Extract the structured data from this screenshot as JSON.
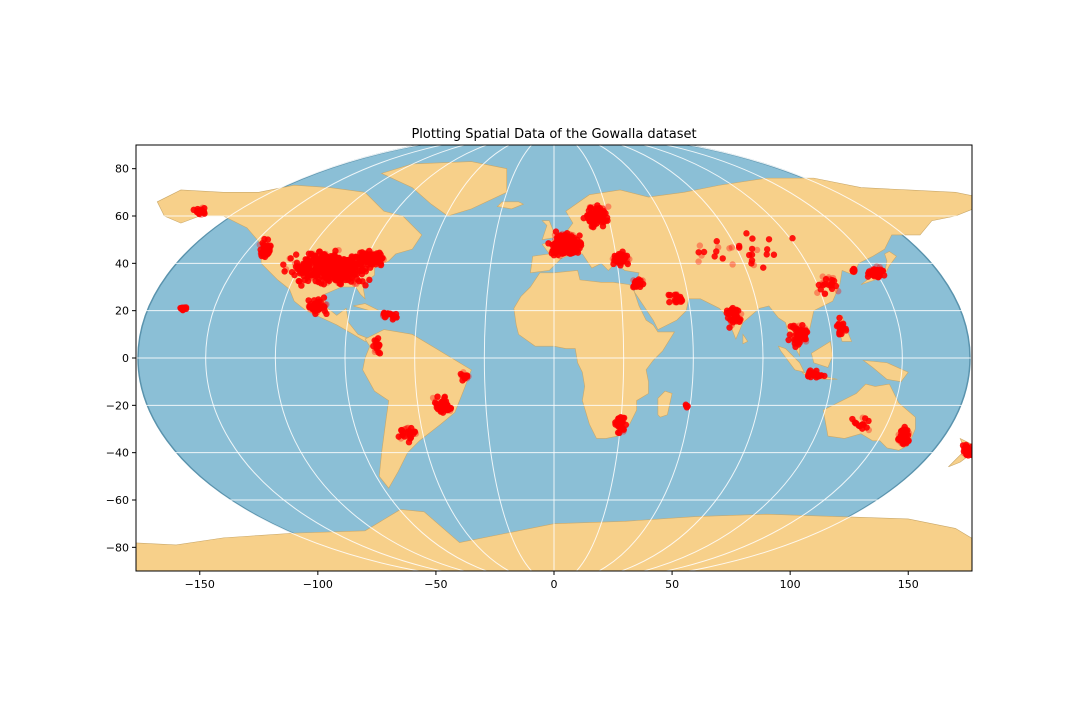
{
  "chart_data": {
    "type": "scatter",
    "title": "Plotting Spatial Data of the Gowalla dataset",
    "xlabel": "",
    "ylabel": "",
    "xlim": [
      -177,
      177
    ],
    "ylim": [
      -90,
      90
    ],
    "x_ticks": [
      -150,
      -100,
      -50,
      0,
      50,
      100,
      150
    ],
    "x_tick_labels": [
      "−150",
      "−100",
      "−50",
      "0",
      "50",
      "100",
      "150"
    ],
    "y_ticks": [
      80,
      60,
      40,
      20,
      0,
      -20,
      -40,
      -60,
      -80
    ],
    "y_tick_labels": [
      "80",
      "60",
      "40",
      "20",
      "0",
      "−20",
      "−40",
      "−60",
      "−80"
    ],
    "projection": "Robinson world map with graticule",
    "grid": true,
    "colors": {
      "ocean": "#8bbfd6",
      "land": "#f7d08a",
      "points": "#ff0000",
      "graticule": "#ffffff",
      "border": "#5a93ad"
    },
    "series": [
      {
        "marker": "circle",
        "clusters": [
          {
            "lon": -95,
            "lat": 38,
            "spread_lon": 22,
            "spread_lat": 9,
            "n": 420
          },
          {
            "lon": -78,
            "lat": 42,
            "spread_lon": 8,
            "spread_lat": 4,
            "n": 90
          },
          {
            "lon": -122,
            "lat": 46,
            "spread_lon": 4,
            "spread_lat": 5,
            "n": 50
          },
          {
            "lon": -150,
            "lat": 62,
            "spread_lon": 3,
            "spread_lat": 2,
            "n": 18
          },
          {
            "lon": -157,
            "lat": 21,
            "spread_lon": 2,
            "spread_lat": 1,
            "n": 10
          },
          {
            "lon": -100,
            "lat": 22,
            "spread_lon": 6,
            "spread_lat": 4,
            "n": 50
          },
          {
            "lon": -70,
            "lat": 18,
            "spread_lon": 6,
            "spread_lat": 2,
            "n": 25
          },
          {
            "lon": -75,
            "lat": 5,
            "spread_lon": 3,
            "spread_lat": 4,
            "n": 20
          },
          {
            "lon": -47,
            "lat": -20,
            "spread_lon": 5,
            "spread_lat": 5,
            "n": 50
          },
          {
            "lon": -62,
            "lat": -32,
            "spread_lon": 5,
            "spread_lat": 4,
            "n": 30
          },
          {
            "lon": -38,
            "lat": -8,
            "spread_lon": 3,
            "spread_lat": 3,
            "n": 15
          },
          {
            "lon": 5,
            "lat": 48,
            "spread_lon": 8,
            "spread_lat": 6,
            "n": 320
          },
          {
            "lon": 18,
            "lat": 60,
            "spread_lon": 6,
            "spread_lat": 6,
            "n": 120
          },
          {
            "lon": 28,
            "lat": 42,
            "spread_lon": 5,
            "spread_lat": 4,
            "n": 60
          },
          {
            "lon": 35,
            "lat": 32,
            "spread_lon": 4,
            "spread_lat": 3,
            "n": 25
          },
          {
            "lon": 52,
            "lat": 25,
            "spread_lon": 4,
            "spread_lat": 3,
            "n": 25
          },
          {
            "lon": 28,
            "lat": -28,
            "spread_lon": 3,
            "spread_lat": 5,
            "n": 40
          },
          {
            "lon": 76,
            "lat": 18,
            "spread_lon": 5,
            "spread_lat": 7,
            "n": 45
          },
          {
            "lon": 104,
            "lat": 10,
            "spread_lon": 5,
            "spread_lat": 7,
            "n": 65
          },
          {
            "lon": 110,
            "lat": -7,
            "spread_lon": 6,
            "spread_lat": 2,
            "n": 30
          },
          {
            "lon": 122,
            "lat": 13,
            "spread_lon": 3,
            "spread_lat": 5,
            "n": 20
          },
          {
            "lon": 136,
            "lat": 36,
            "spread_lon": 5,
            "spread_lat": 3,
            "n": 60
          },
          {
            "lon": 127,
            "lat": 37,
            "spread_lon": 1,
            "spread_lat": 1,
            "n": 10
          },
          {
            "lon": 116,
            "lat": 31,
            "spread_lon": 6,
            "spread_lat": 7,
            "n": 25
          },
          {
            "lon": 148,
            "lat": -33,
            "spread_lon": 3,
            "spread_lat": 5,
            "n": 80
          },
          {
            "lon": 130,
            "lat": -28,
            "spread_lon": 8,
            "spread_lat": 6,
            "n": 15
          },
          {
            "lon": 175,
            "lat": -39,
            "spread_lon": 3,
            "spread_lat": 3,
            "n": 30
          },
          {
            "lon": 56,
            "lat": -20,
            "spread_lon": 1,
            "spread_lat": 1,
            "n": 4
          },
          {
            "lon": 80,
            "lat": 45,
            "spread_lon": 30,
            "spread_lat": 10,
            "n": 30
          }
        ]
      }
    ]
  }
}
